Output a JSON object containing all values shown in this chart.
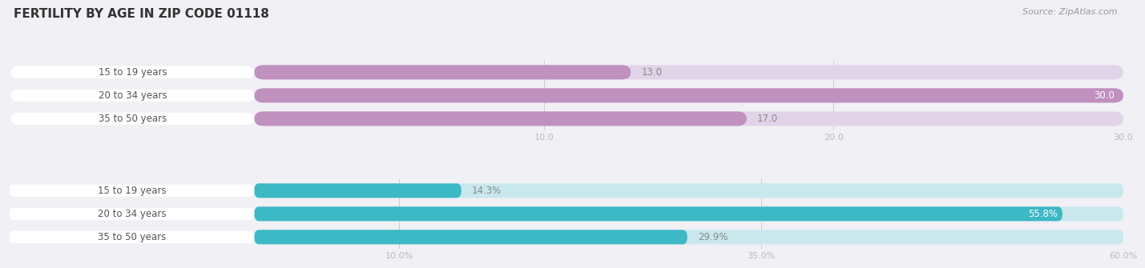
{
  "title": "FERTILITY BY AGE IN ZIP CODE 01118",
  "source_text": "Source: ZipAtlas.com",
  "top_section": {
    "categories": [
      "15 to 19 years",
      "20 to 34 years",
      "35 to 50 years"
    ],
    "values": [
      13.0,
      30.0,
      17.0
    ],
    "xmin": -8.5,
    "xmax": 30.0,
    "xticks": [
      10.0,
      20.0,
      30.0
    ],
    "xtick_labels": [
      "10.0",
      "20.0",
      "30.0"
    ],
    "bar_color": "#c090bf",
    "bar_bg_color": "#e2d4e8",
    "label_inside_color": "#ffffff",
    "label_outside_color": "#888888"
  },
  "bottom_section": {
    "categories": [
      "15 to 19 years",
      "20 to 34 years",
      "35 to 50 years"
    ],
    "values": [
      14.3,
      55.8,
      29.9
    ],
    "xmin": -17.0,
    "xmax": 60.0,
    "xticks": [
      10.0,
      35.0,
      60.0
    ],
    "xtick_labels": [
      "10.0%",
      "35.0%",
      "60.0%"
    ],
    "bar_color": "#3db8c5",
    "bar_bg_color": "#c8e8ee",
    "label_inside_color": "#ffffff",
    "label_outside_color": "#888888"
  },
  "title_fontsize": 11,
  "label_fontsize": 8.5,
  "tick_fontsize": 8,
  "source_fontsize": 8,
  "background_color": "#f0f0f5",
  "pill_color": "#ffffff",
  "pill_text_color": "#555555"
}
